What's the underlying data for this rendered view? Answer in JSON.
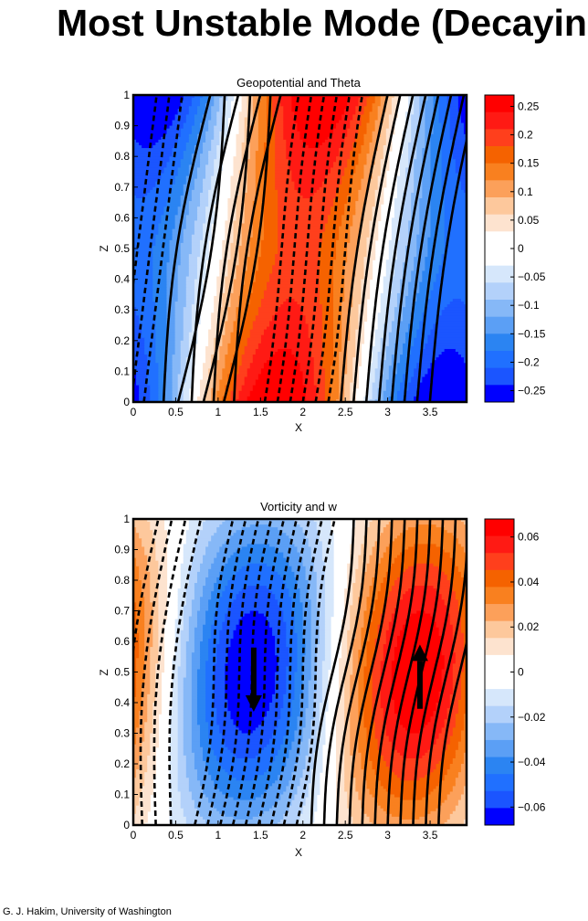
{
  "title": "Most Unstable Mode (Decaying",
  "credit": "G. J. Hakim, University of Washington",
  "colors": {
    "positive": [
      "#fde3cf",
      "#fdc89c",
      "#fca05a",
      "#f9801f",
      "#f56200",
      "#ff3f1c",
      "#ff1a14",
      "#ff0000"
    ],
    "negative": [
      "#d6e7fb",
      "#b3d1fa",
      "#86b8f7",
      "#5b9ff5",
      "#2b84f2",
      "#2070ff",
      "#1b55ff",
      "#0000ff"
    ]
  },
  "chart_data": [
    {
      "type": "contour",
      "title": "Geopotential and Theta",
      "xlabel": "X",
      "ylabel": "Z",
      "xlim": [
        0,
        3.93
      ],
      "ylim": [
        0,
        1
      ],
      "xticks": [
        "0",
        "0.5",
        "1",
        "1.5",
        "2",
        "2.5",
        "3",
        "3.5"
      ],
      "yticks": [
        "0",
        "0.1",
        "0.2",
        "0.3",
        "0.4",
        "0.5",
        "0.6",
        "0.7",
        "0.8",
        "0.9",
        "1"
      ],
      "colorbar_ticks": [
        "0.25",
        "0.2",
        "0.15",
        "0.1",
        "0.05",
        "0",
        "−0.05",
        "−0.1",
        "−0.15",
        "−0.2",
        "−0.25"
      ],
      "colorbar_range": [
        -0.27,
        0.27
      ]
    },
    {
      "type": "contour",
      "title": "Vorticity and w",
      "xlabel": "X",
      "ylabel": "Z",
      "xlim": [
        0,
        3.93
      ],
      "ylim": [
        0,
        1
      ],
      "xticks": [
        "0",
        "0.5",
        "1",
        "1.5",
        "2",
        "2.5",
        "3",
        "3.5"
      ],
      "yticks": [
        "0",
        "0.1",
        "0.2",
        "0.3",
        "0.4",
        "0.5",
        "0.6",
        "0.7",
        "0.8",
        "0.9",
        "1"
      ],
      "colorbar_ticks": [
        "0.06",
        "0.04",
        "0.02",
        "0",
        "−0.02",
        "−0.04",
        "−0.06"
      ],
      "colorbar_range": [
        -0.068,
        0.068
      ],
      "arrows": [
        {
          "direction": "down",
          "x": 1.42,
          "z_from": 0.58,
          "z_to": 0.37
        },
        {
          "direction": "up",
          "x": 3.38,
          "z_from": 0.38,
          "z_to": 0.59
        }
      ]
    }
  ]
}
